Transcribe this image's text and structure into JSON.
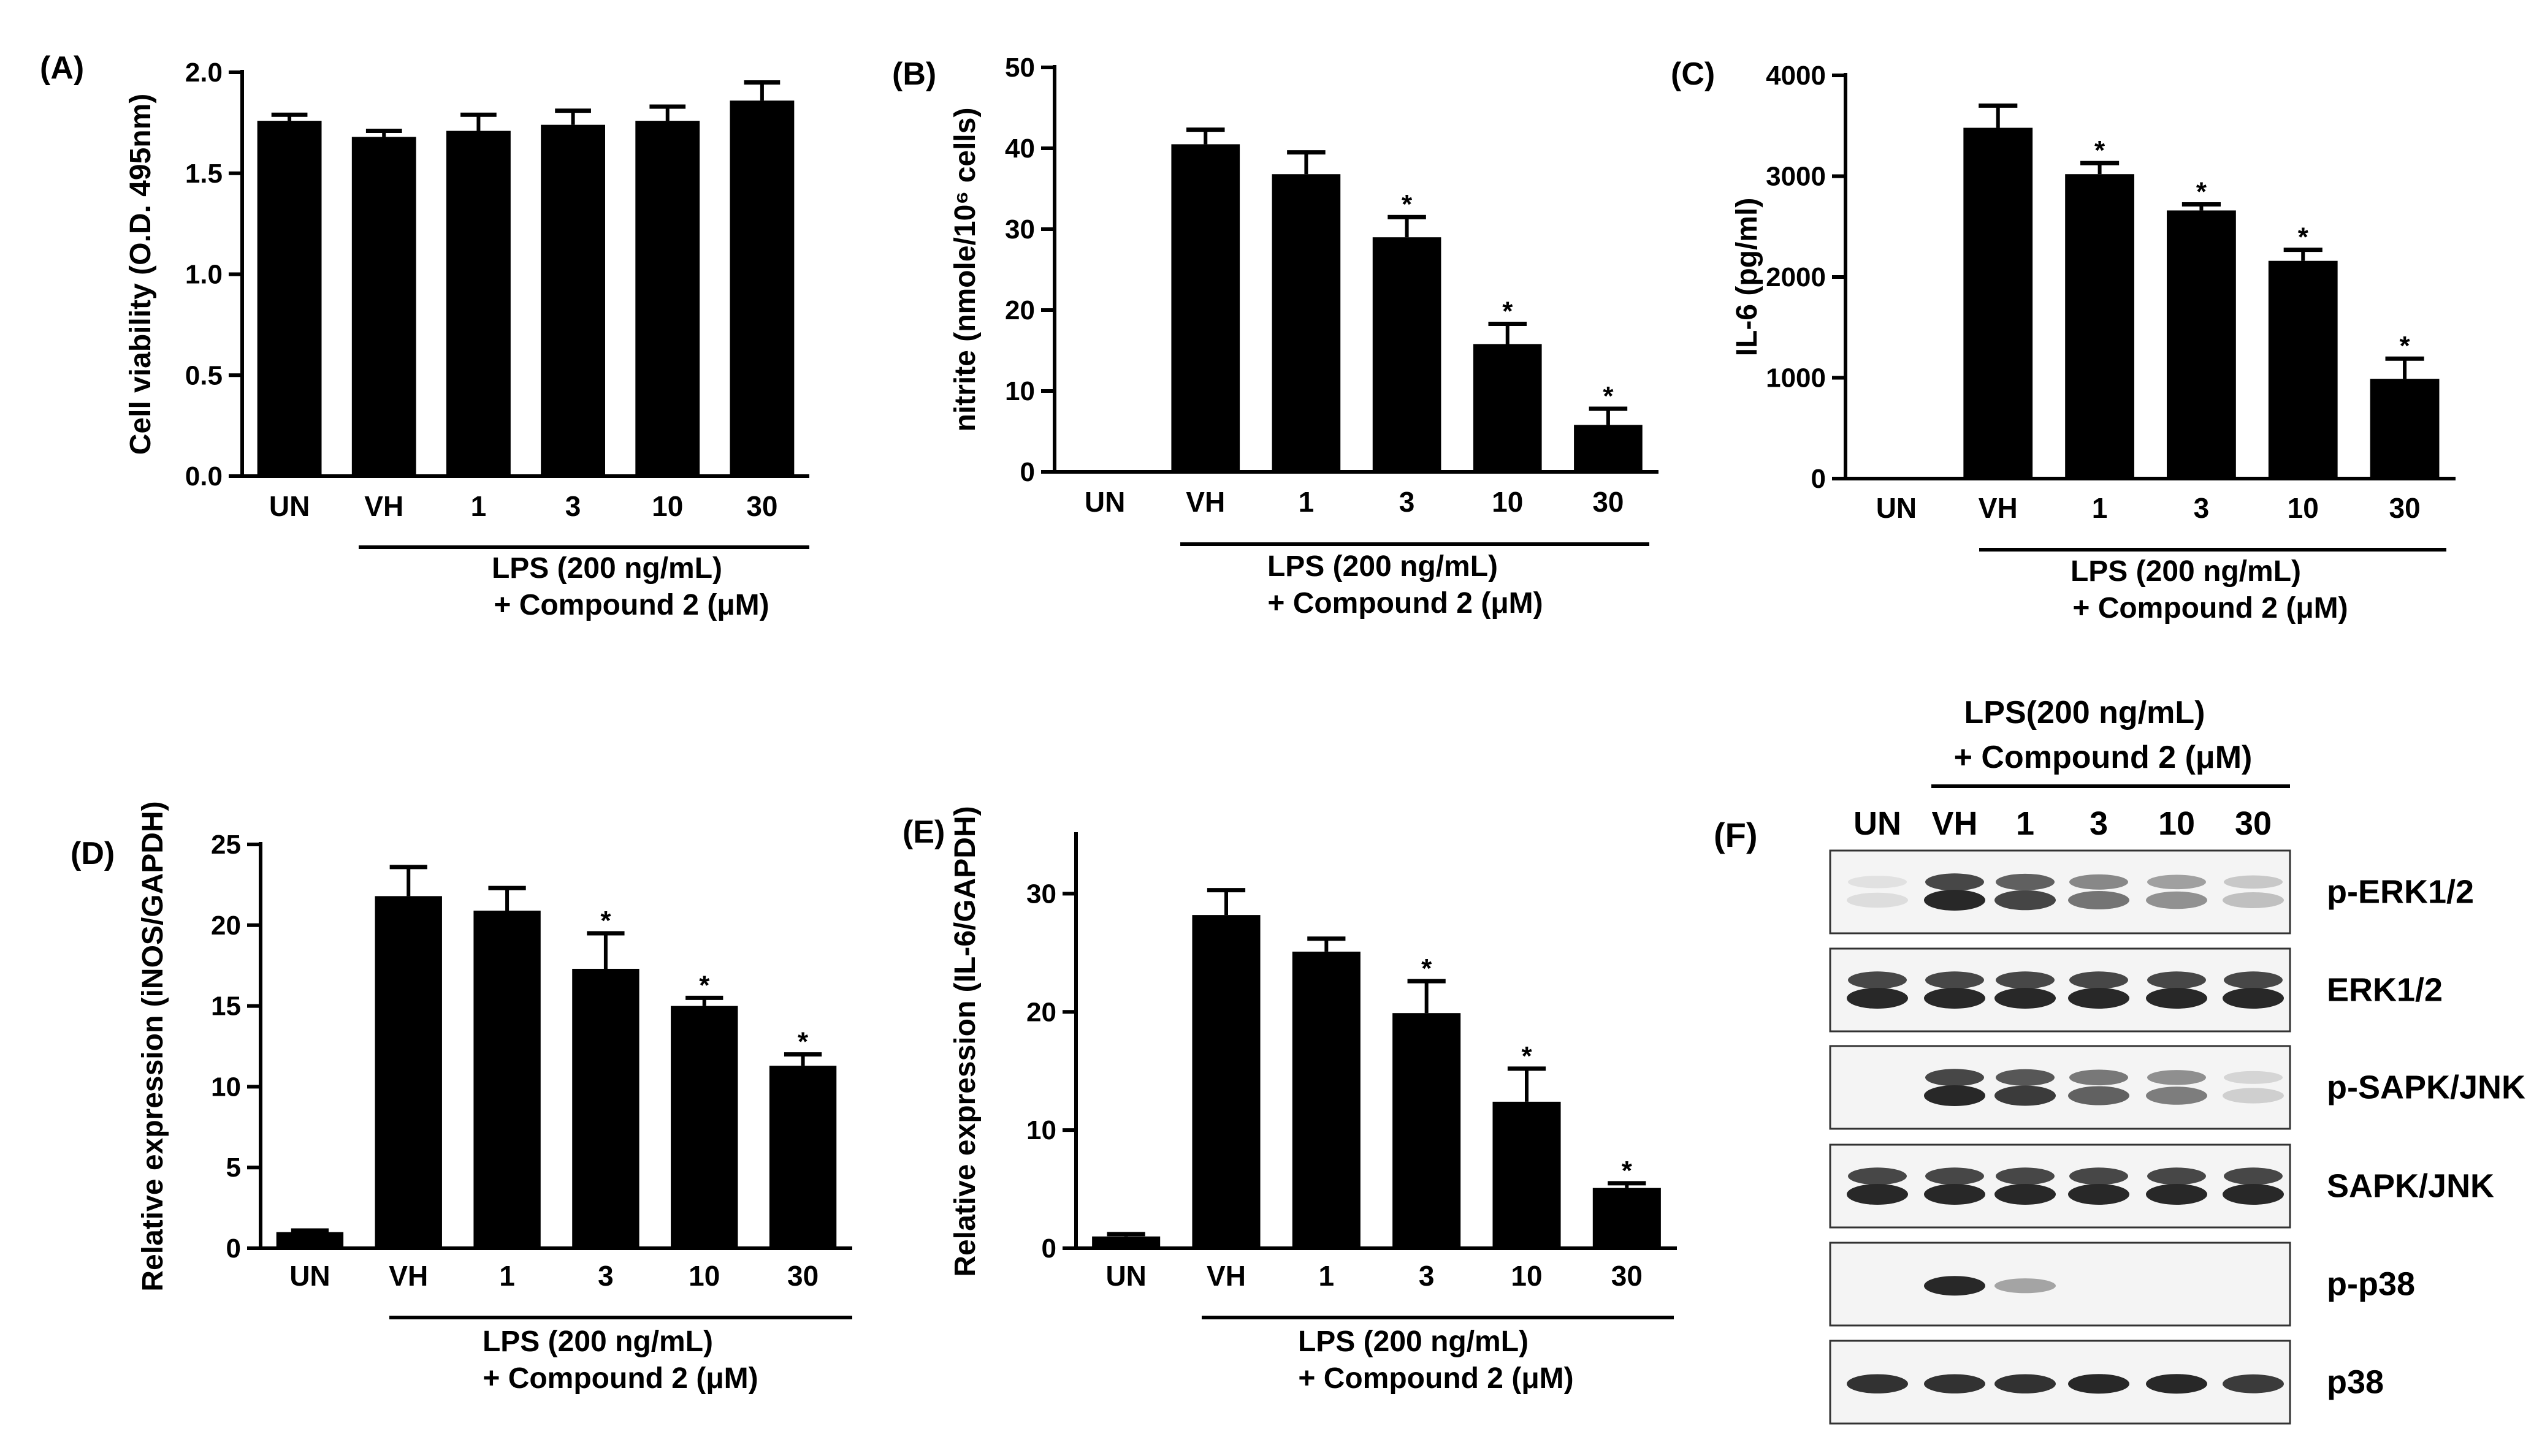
{
  "chart_data": [
    {
      "panel": "(A)",
      "type": "bar",
      "categories": [
        "UN",
        "VH",
        "1",
        "3",
        "10",
        "30"
      ],
      "values": [
        1.76,
        1.68,
        1.71,
        1.74,
        1.76,
        1.86
      ],
      "errors": [
        0.03,
        0.03,
        0.08,
        0.07,
        0.07,
        0.09
      ],
      "significant": [
        false,
        false,
        false,
        false,
        false,
        false
      ],
      "ylabel": "Cell viability (O.D. 495nm)",
      "ylim": [
        0,
        2.0
      ],
      "yticks": [
        "0.0",
        "0.5",
        "1.0",
        "1.5",
        "2.0"
      ],
      "treatment_label": [
        "LPS (200 ng/mL)",
        "+ Compound 2 (μM)"
      ]
    },
    {
      "panel": "(B)",
      "type": "bar",
      "categories": [
        "UN",
        "VH",
        "1",
        "3",
        "10",
        "30"
      ],
      "values": [
        0,
        40.5,
        36.8,
        29.0,
        15.8,
        5.8
      ],
      "errors": [
        0,
        1.8,
        2.7,
        2.5,
        2.5,
        2.0
      ],
      "significant": [
        false,
        false,
        false,
        true,
        true,
        true
      ],
      "ylabel": "nitrite (nmole/10⁶ cells)",
      "ylim": [
        0,
        50
      ],
      "yticks": [
        "0",
        "10",
        "20",
        "30",
        "40",
        "50"
      ],
      "treatment_label": [
        "LPS (200 ng/mL)",
        "+ Compound 2 (μM)"
      ]
    },
    {
      "panel": "(C)",
      "type": "bar",
      "categories": [
        "UN",
        "VH",
        "1",
        "3",
        "10",
        "30"
      ],
      "values": [
        0,
        3480,
        3020,
        2660,
        2160,
        990
      ],
      "errors": [
        0,
        220,
        110,
        60,
        110,
        200
      ],
      "significant": [
        false,
        false,
        true,
        true,
        true,
        true
      ],
      "ylabel": "IL-6 (pg/ml)",
      "ylim": [
        0,
        4000
      ],
      "yticks": [
        "0",
        "1000",
        "2000",
        "3000",
        "4000"
      ],
      "treatment_label": [
        "LPS (200 ng/mL)",
        "+ Compound 2 (μM)"
      ]
    },
    {
      "panel": "(D)",
      "type": "bar",
      "categories": [
        "UN",
        "VH",
        "1",
        "3",
        "10",
        "30"
      ],
      "values": [
        1.0,
        21.8,
        20.9,
        17.3,
        15.0,
        11.3
      ],
      "errors": [
        0.1,
        1.8,
        1.4,
        2.2,
        0.5,
        0.7
      ],
      "significant": [
        false,
        false,
        false,
        true,
        true,
        true
      ],
      "ylabel": "Relative expression (iNOS/GAPDH)",
      "ylim": [
        0,
        25
      ],
      "yticks": [
        "0",
        "5",
        "10",
        "15",
        "20",
        "25"
      ],
      "treatment_label": [
        "LPS (200 ng/mL)",
        "+ Compound 2 (μM)"
      ]
    },
    {
      "panel": "(E)",
      "type": "bar",
      "categories": [
        "UN",
        "VH",
        "1",
        "3",
        "10",
        "30"
      ],
      "values": [
        1.0,
        28.2,
        25.1,
        19.9,
        12.4,
        5.1
      ],
      "errors": [
        0.2,
        2.1,
        1.1,
        2.7,
        2.8,
        0.4
      ],
      "significant": [
        false,
        false,
        false,
        true,
        true,
        true
      ],
      "ylabel": "Relative expression (IL-6/GAPDH)",
      "ylim": [
        0,
        35
      ],
      "yticks": [
        "0",
        "10",
        "20",
        "30"
      ],
      "treatment_label": [
        "LPS (200 ng/mL)",
        "+ Compound 2 (μM)"
      ]
    }
  ],
  "western_blot": {
    "panel": "(F)",
    "header_line1": "LPS(200 ng/mL)",
    "header_line2": "+ Compound 2 (μM)",
    "lanes": [
      "UN",
      "VH",
      "1",
      "3",
      "10",
      "30"
    ],
    "rows": [
      {
        "label": "p-ERK1/2",
        "intensity": [
          0.05,
          1.0,
          0.85,
          0.6,
          0.45,
          0.2
        ],
        "double": true
      },
      {
        "label": "ERK1/2",
        "intensity": [
          1.0,
          1.0,
          1.0,
          1.0,
          1.0,
          1.0
        ],
        "double": true
      },
      {
        "label": "p-SAPK/JNK",
        "intensity": [
          0.0,
          1.0,
          0.9,
          0.7,
          0.55,
          0.12
        ],
        "double": true
      },
      {
        "label": "SAPK/JNK",
        "intensity": [
          1.0,
          1.0,
          1.0,
          1.0,
          1.0,
          1.0
        ],
        "double": true
      },
      {
        "label": "p-p38",
        "intensity": [
          0.0,
          1.0,
          0.35,
          0.0,
          0.0,
          0.0
        ],
        "double": false
      },
      {
        "label": "p38",
        "intensity": [
          0.95,
          0.95,
          0.95,
          1.0,
          1.0,
          0.9
        ],
        "double": false
      }
    ]
  },
  "significance_marker": "*"
}
